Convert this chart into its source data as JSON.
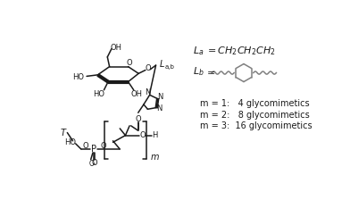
{
  "bg_color": "#ffffff",
  "fig_width": 3.92,
  "fig_height": 2.24,
  "dpi": 100,
  "line_color": "#1a1a1a",
  "gray_color": "#808080",
  "legend_lines": [
    "m = 1:   4 glycomimetics",
    "m = 2:   8 glycomimetics",
    "m = 3:  16 glycomimetics"
  ]
}
